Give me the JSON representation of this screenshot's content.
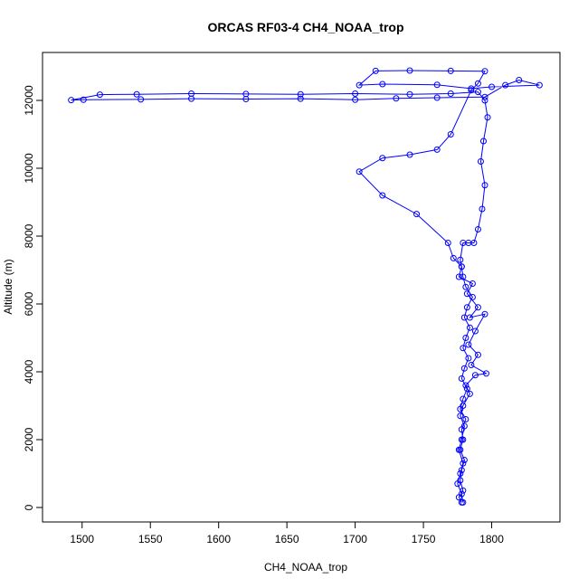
{
  "chart_data": {
    "type": "line",
    "title": "ORCAS RF03-4 CH4_NOAA_trop",
    "x_label": "CH4_NOAA_trop",
    "y_label": "Altitude (m)",
    "color": "#0000ff",
    "markers": true,
    "xlim": [
      1471,
      1850
    ],
    "ylim": [
      -427,
      13413
    ],
    "xticks": [
      1500,
      1550,
      1600,
      1650,
      1700,
      1750,
      1800
    ],
    "yticks": [
      0,
      2000,
      4000,
      6000,
      8000,
      10000,
      12000
    ],
    "x": [
      1778,
      1776,
      1779,
      1777,
      1778,
      1780,
      1777,
      1779,
      1778,
      1781,
      1777,
      1779,
      1782,
      1778,
      1780,
      1783,
      1779,
      1781,
      1784,
      1780,
      1782,
      1786,
      1781,
      1779,
      1778,
      1777,
      1779,
      1783,
      1787,
      1790,
      1793,
      1795,
      1792,
      1794,
      1797,
      1795,
      1790,
      1770,
      1740,
      1700,
      1660,
      1620,
      1580,
      1540,
      1513,
      1492,
      1501,
      1543,
      1580,
      1620,
      1660,
      1700,
      1730,
      1760,
      1795,
      1810,
      1820,
      1835,
      1800,
      1785,
      1760,
      1720,
      1703,
      1715,
      1740,
      1770,
      1795,
      1790,
      1785,
      1770,
      1760,
      1740,
      1720,
      1703,
      1720,
      1745,
      1768,
      1772,
      1778,
      1776,
      1786,
      1782,
      1790,
      1784,
      1795,
      1788,
      1783,
      1790,
      1785,
      1796,
      1788,
      1781,
      1784,
      1779,
      1777,
      1780,
      1778,
      1776,
      1779,
      1777,
      1775,
      1778,
      1779
    ],
    "values": [
      150,
      300,
      500,
      800,
      1100,
      1400,
      1700,
      2000,
      2300,
      2600,
      2900,
      3200,
      3500,
      3800,
      4100,
      4400,
      4700,
      5000,
      5300,
      5600,
      5900,
      6200,
      6500,
      6800,
      7100,
      7300,
      7800,
      7800,
      7800,
      8200,
      8800,
      9500,
      10200,
      10800,
      11500,
      12000,
      12250,
      12200,
      12180,
      12200,
      12180,
      12190,
      12200,
      12180,
      12170,
      12010,
      12020,
      12030,
      12050,
      12040,
      12050,
      12020,
      12060,
      12080,
      12100,
      12450,
      12600,
      12450,
      12400,
      12350,
      12460,
      12480,
      12450,
      12870,
      12880,
      12870,
      12860,
      12500,
      12300,
      11000,
      10550,
      10400,
      10300,
      9900,
      9200,
      8650,
      7800,
      7350,
      7100,
      6800,
      6600,
      6300,
      5900,
      5600,
      5700,
      5200,
      4800,
      4500,
      4200,
      3950,
      3900,
      3600,
      3350,
      3000,
      2700,
      2400,
      2000,
      1700,
      1300,
      1000,
      700,
      400,
      150
    ]
  }
}
